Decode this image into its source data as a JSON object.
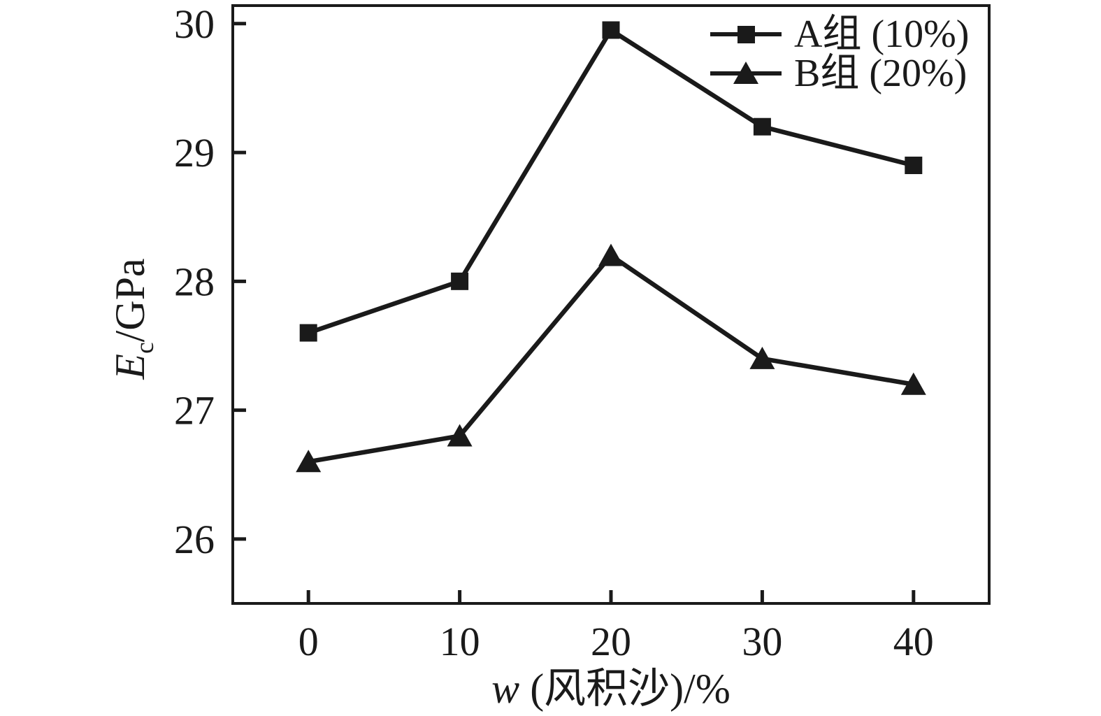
{
  "figure": {
    "background": "#ffffff",
    "ink_color": "#1a1a1a"
  },
  "chart_data": {
    "type": "line",
    "x": [
      0,
      10,
      20,
      30,
      40
    ],
    "series": [
      {
        "name": "A组 (10%)",
        "marker": "square",
        "values": [
          27.6,
          28.0,
          29.95,
          29.2,
          28.9
        ]
      },
      {
        "name": "B组 (20%)",
        "marker": "triangle",
        "values": [
          26.6,
          26.8,
          28.2,
          27.4,
          27.2
        ]
      }
    ],
    "xlabel": "w (风积沙)/%",
    "ylabel": "Ec/GPa",
    "xlabel_parts": {
      "var": "w",
      "rest": " (风积沙)/%"
    },
    "ylabel_parts": {
      "var": "E",
      "sub": "c",
      "rest": "/GPa"
    },
    "x_ticks": [
      "0",
      "10",
      "20",
      "30",
      "40"
    ],
    "x_tick_values": [
      0,
      10,
      20,
      30,
      40
    ],
    "y_ticks": [
      "26",
      "27",
      "28",
      "29",
      "30"
    ],
    "y_tick_values": [
      26,
      27,
      28,
      29,
      30
    ],
    "xlim": [
      -5,
      45
    ],
    "ylim": [
      25.5,
      30.14
    ],
    "grid": false,
    "legend_position": "top-right-inside",
    "line_color": "#1a1a1a"
  }
}
